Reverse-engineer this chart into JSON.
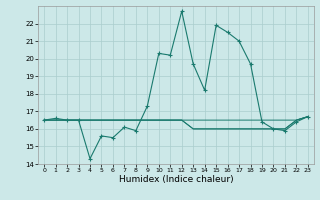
{
  "title": "",
  "xlabel": "Humidex (Indice chaleur)",
  "ylabel": "",
  "bg_color": "#cce8e8",
  "line_color": "#1a7a6e",
  "grid_color": "#aacece",
  "ylim": [
    14,
    23
  ],
  "xlim": [
    -0.5,
    23.5
  ],
  "yticks": [
    14,
    15,
    16,
    17,
    18,
    19,
    20,
    21,
    22
  ],
  "xticks": [
    0,
    1,
    2,
    3,
    4,
    5,
    6,
    7,
    8,
    9,
    10,
    11,
    12,
    13,
    14,
    15,
    16,
    17,
    18,
    19,
    20,
    21,
    22,
    23
  ],
  "series": [
    [
      16.5,
      16.5,
      16.5,
      16.5,
      16.5,
      16.5,
      16.5,
      16.5,
      16.5,
      16.5,
      16.5,
      16.5,
      16.5,
      16.5,
      16.5,
      16.5,
      16.5,
      16.5,
      16.5,
      16.5,
      16.5,
      16.5,
      16.5,
      16.7
    ],
    [
      16.5,
      16.5,
      16.5,
      16.5,
      16.5,
      16.5,
      16.5,
      16.5,
      16.5,
      16.5,
      16.5,
      16.5,
      16.5,
      16.0,
      16.0,
      16.0,
      16.0,
      16.0,
      16.0,
      16.0,
      16.0,
      16.0,
      16.5,
      16.7
    ],
    [
      16.5,
      16.5,
      16.5,
      16.5,
      16.5,
      16.5,
      16.5,
      16.5,
      16.5,
      16.5,
      16.5,
      16.5,
      16.5,
      16.0,
      16.0,
      16.0,
      16.0,
      16.0,
      16.0,
      16.0,
      16.0,
      16.0,
      16.5,
      16.7
    ],
    [
      16.5,
      16.6,
      16.5,
      16.5,
      14.3,
      15.6,
      15.5,
      16.1,
      15.9,
      17.3,
      20.3,
      20.2,
      22.7,
      19.7,
      18.2,
      21.9,
      21.5,
      21.0,
      19.7,
      16.4,
      16.0,
      15.9,
      16.4,
      16.7
    ]
  ]
}
